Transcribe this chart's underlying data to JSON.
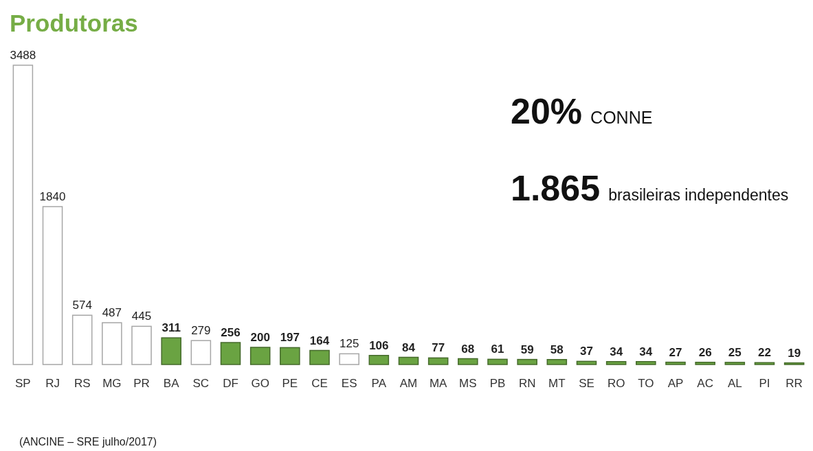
{
  "chart_data": {
    "type": "bar",
    "title": "Produtoras",
    "categories": [
      "SP",
      "RJ",
      "RS",
      "MG",
      "PR",
      "BA",
      "SC",
      "DF",
      "GO",
      "PE",
      "CE",
      "ES",
      "PA",
      "AM",
      "MA",
      "MS",
      "PB",
      "RN",
      "MT",
      "SE",
      "RO",
      "TO",
      "AP",
      "AC",
      "AL",
      "PI",
      "RR"
    ],
    "values": [
      3488,
      1840,
      574,
      487,
      445,
      311,
      279,
      256,
      200,
      197,
      164,
      125,
      106,
      84,
      77,
      68,
      61,
      59,
      58,
      37,
      34,
      34,
      27,
      26,
      25,
      22,
      19
    ],
    "colors": [
      "#ffffff",
      "#ffffff",
      "#ffffff",
      "#ffffff",
      "#ffffff",
      "#6aa342",
      "#ffffff",
      "#6aa342",
      "#6aa342",
      "#6aa342",
      "#6aa342",
      "#ffffff",
      "#6aa342",
      "#6aa342",
      "#6aa342",
      "#6aa342",
      "#6aa342",
      "#6aa342",
      "#6aa342",
      "#6aa342",
      "#6aa342",
      "#6aa342",
      "#6aa342",
      "#6aa342",
      "#6aa342",
      "#6aa342",
      "#6aa342"
    ],
    "data_labels": true,
    "annotations": [
      "20% CONNE",
      "1.865 brasileiras independentes",
      "(ANCINE – SRE julho/2017)"
    ]
  }
}
